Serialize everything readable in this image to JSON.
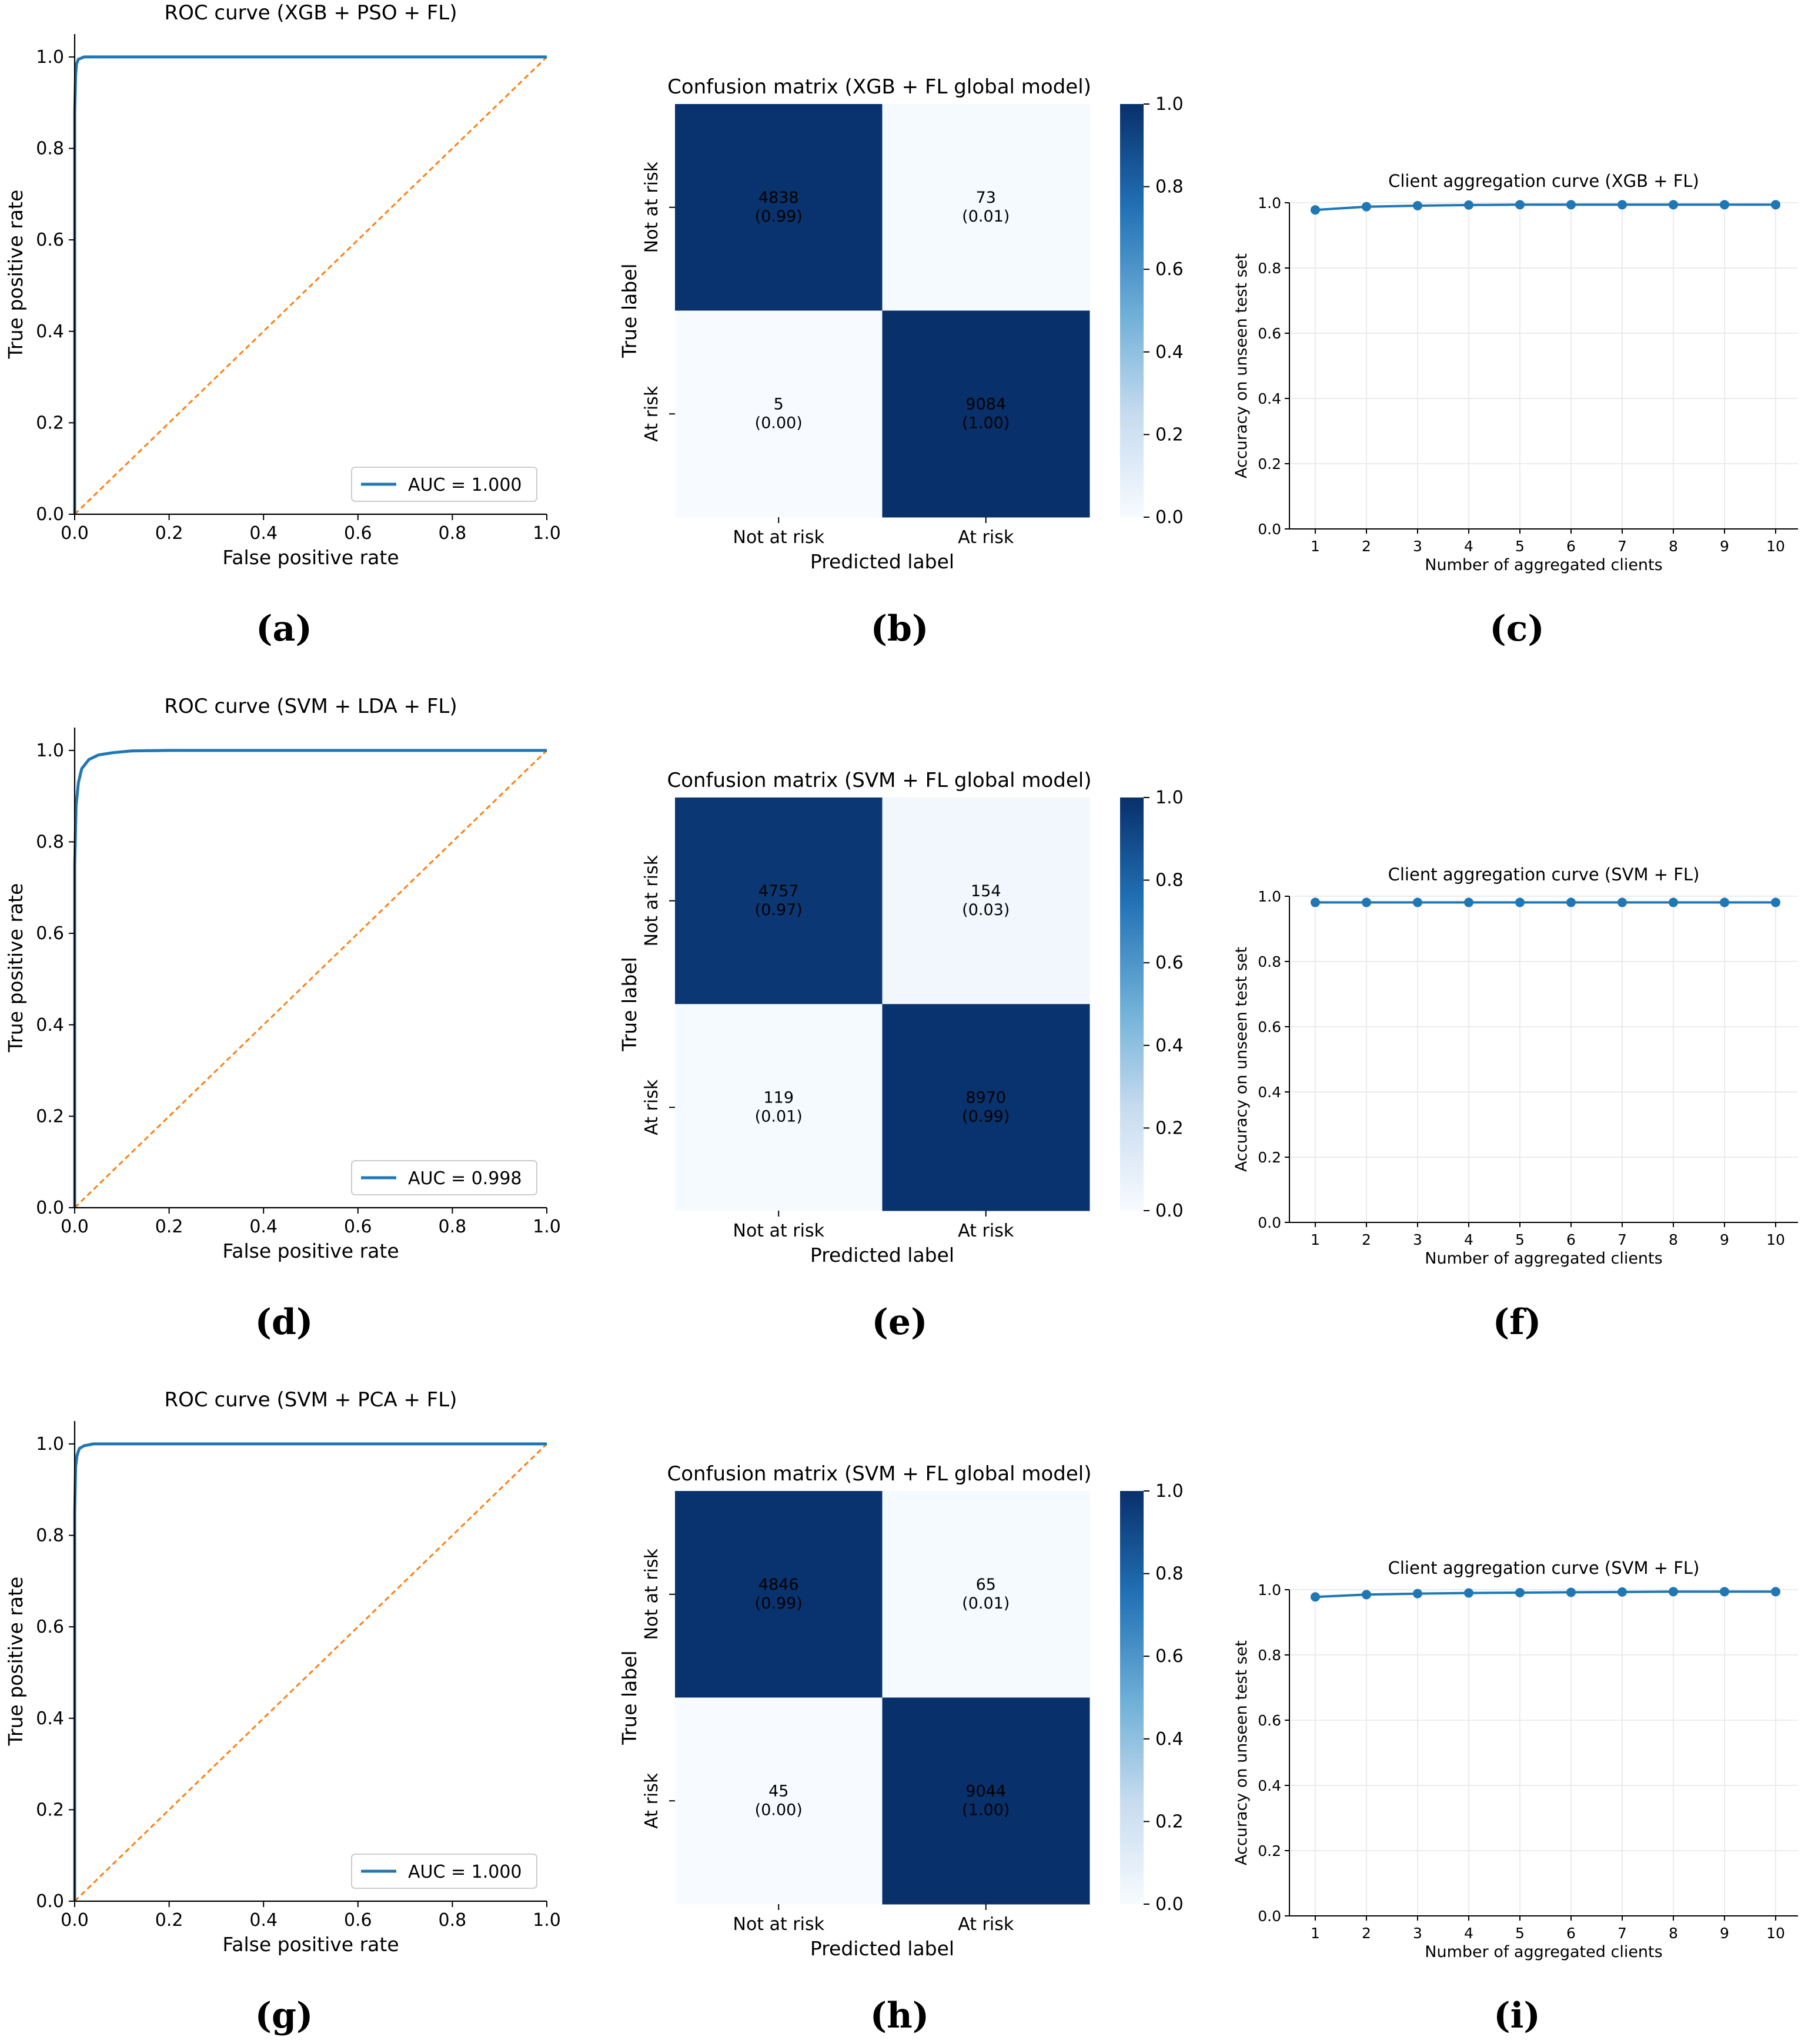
{
  "colors": {
    "roc_line": "#1f77b4",
    "diagonal": "#ff7f0e",
    "cm_high": "#08306b",
    "cm_low": "#f7fbff",
    "agg_line": "#1f77b4",
    "grid": "#e6e6e6"
  },
  "chart_data": [
    {
      "panel": "a",
      "type": "line",
      "subtype": "roc",
      "title": "ROC curve (XGB + PSO + FL)",
      "xlabel": "False positive rate",
      "ylabel": "True positive rate",
      "xlim": [
        0,
        1
      ],
      "ylim": [
        0,
        1.05
      ],
      "xticks": [
        "0.0",
        "0.2",
        "0.4",
        "0.6",
        "0.8",
        "1.0"
      ],
      "yticks": [
        "0.0",
        "0.2",
        "0.4",
        "0.6",
        "0.8",
        "1.0"
      ],
      "series": [
        {
          "name": "AUC = 1.000",
          "x": [
            0,
            0.0,
            0.002,
            0.004,
            0.008,
            0.02,
            0.05,
            0.2,
            1.0
          ],
          "y": [
            0,
            0.88,
            0.96,
            0.985,
            0.995,
            1.0,
            1.0,
            1.0,
            1.0
          ]
        },
        {
          "name": "chance",
          "x": [
            0,
            1
          ],
          "y": [
            0,
            1
          ],
          "style": "dashed"
        }
      ],
      "legend": "AUC = 1.000",
      "legend_position": "lower-right",
      "caption": "(a)"
    },
    {
      "panel": "b",
      "type": "heatmap",
      "subtype": "confusion-matrix",
      "title": "Confusion matrix (XGB + FL global model)",
      "xlabel": "Predicted label",
      "ylabel": "True label",
      "xticklabels": [
        "Not at risk",
        "At risk"
      ],
      "yticklabels": [
        "Not at risk",
        "At risk"
      ],
      "counts": [
        [
          4838,
          73
        ],
        [
          5,
          9084
        ]
      ],
      "normalized": [
        "(0.99)",
        "(0.01)",
        "(0.00)",
        "(1.00)"
      ],
      "values": [
        0.99,
        0.01,
        0.0,
        1.0
      ],
      "colorbar_ticks": [
        "0.0",
        "0.2",
        "0.4",
        "0.6",
        "0.8",
        "1.0"
      ],
      "caption": "(b)"
    },
    {
      "panel": "c",
      "type": "line",
      "subtype": "aggregation",
      "title": "Client aggregation curve (XGB + FL)",
      "xlabel": "Number of aggregated clients",
      "ylabel": "Accuracy on unseen test set",
      "x": [
        1,
        2,
        3,
        4,
        5,
        6,
        7,
        8,
        9,
        10
      ],
      "values": [
        0.978,
        0.988,
        0.991,
        0.993,
        0.994,
        0.994,
        0.994,
        0.994,
        0.994,
        0.994
      ],
      "ylim": [
        0,
        1.0
      ],
      "yticks": [
        "0.0",
        "0.2",
        "0.4",
        "0.6",
        "0.8",
        "1.0"
      ],
      "xticks": [
        "1",
        "2",
        "3",
        "4",
        "5",
        "6",
        "7",
        "8",
        "9",
        "10"
      ],
      "caption": "(c)"
    },
    {
      "panel": "d",
      "type": "line",
      "subtype": "roc",
      "title": "ROC curve (SVM + LDA + FL)",
      "xlabel": "False positive rate",
      "ylabel": "True positive rate",
      "xlim": [
        0,
        1
      ],
      "ylim": [
        0,
        1.05
      ],
      "xticks": [
        "0.0",
        "0.2",
        "0.4",
        "0.6",
        "0.8",
        "1.0"
      ],
      "yticks": [
        "0.0",
        "0.2",
        "0.4",
        "0.6",
        "0.8",
        "1.0"
      ],
      "series": [
        {
          "name": "AUC = 0.998",
          "x": [
            0,
            0.0,
            0.003,
            0.008,
            0.015,
            0.03,
            0.05,
            0.08,
            0.12,
            0.2,
            1.0
          ],
          "y": [
            0,
            0.75,
            0.88,
            0.93,
            0.96,
            0.98,
            0.99,
            0.995,
            0.999,
            1.0,
            1.0
          ]
        },
        {
          "name": "chance",
          "x": [
            0,
            1
          ],
          "y": [
            0,
            1
          ],
          "style": "dashed"
        }
      ],
      "legend": "AUC = 0.998",
      "legend_position": "lower-right",
      "caption": "(d)"
    },
    {
      "panel": "e",
      "type": "heatmap",
      "subtype": "confusion-matrix",
      "title": "Confusion matrix (SVM + FL global model)",
      "xlabel": "Predicted label",
      "ylabel": "True label",
      "xticklabels": [
        "Not at risk",
        "At risk"
      ],
      "yticklabels": [
        "Not at risk",
        "At risk"
      ],
      "counts": [
        [
          4757,
          154
        ],
        [
          119,
          8970
        ]
      ],
      "normalized": [
        "(0.97)",
        "(0.03)",
        "(0.01)",
        "(0.99)"
      ],
      "values": [
        0.97,
        0.03,
        0.01,
        0.99
      ],
      "colorbar_ticks": [
        "0.0",
        "0.2",
        "0.4",
        "0.6",
        "0.8",
        "1.0"
      ],
      "caption": "(e)"
    },
    {
      "panel": "f",
      "type": "line",
      "subtype": "aggregation",
      "title": "Client aggregation curve (SVM + FL)",
      "xlabel": "Number of aggregated clients",
      "ylabel": "Accuracy on unseen test set",
      "x": [
        1,
        2,
        3,
        4,
        5,
        6,
        7,
        8,
        9,
        10
      ],
      "values": [
        0.981,
        0.981,
        0.981,
        0.981,
        0.981,
        0.981,
        0.981,
        0.981,
        0.981,
        0.981
      ],
      "ylim": [
        0,
        1.0
      ],
      "yticks": [
        "0.0",
        "0.2",
        "0.4",
        "0.6",
        "0.8",
        "1.0"
      ],
      "xticks": [
        "1",
        "2",
        "3",
        "4",
        "5",
        "6",
        "7",
        "8",
        "9",
        "10"
      ],
      "caption": "(f)"
    },
    {
      "panel": "g",
      "type": "line",
      "subtype": "roc",
      "title": "ROC curve (SVM + PCA + FL)",
      "xlabel": "False positive rate",
      "ylabel": "True positive rate",
      "xlim": [
        0,
        1
      ],
      "ylim": [
        0,
        1.05
      ],
      "xticks": [
        "0.0",
        "0.2",
        "0.4",
        "0.6",
        "0.8",
        "1.0"
      ],
      "yticks": [
        "0.0",
        "0.2",
        "0.4",
        "0.6",
        "0.8",
        "1.0"
      ],
      "series": [
        {
          "name": "AUC = 1.000",
          "x": [
            0,
            0.0,
            0.002,
            0.005,
            0.01,
            0.02,
            0.04,
            0.08,
            1.0
          ],
          "y": [
            0,
            0.85,
            0.95,
            0.975,
            0.99,
            0.996,
            1.0,
            1.0,
            1.0
          ]
        },
        {
          "name": "chance",
          "x": [
            0,
            1
          ],
          "y": [
            0,
            1
          ],
          "style": "dashed"
        }
      ],
      "legend": "AUC = 1.000",
      "legend_position": "lower-right",
      "caption": "(g)"
    },
    {
      "panel": "h",
      "type": "heatmap",
      "subtype": "confusion-matrix",
      "title": "Confusion matrix (SVM + FL global model)",
      "xlabel": "Predicted label",
      "ylabel": "True label",
      "xticklabels": [
        "Not at risk",
        "At risk"
      ],
      "yticklabels": [
        "Not at risk",
        "At risk"
      ],
      "counts": [
        [
          4846,
          65
        ],
        [
          45,
          9044
        ]
      ],
      "normalized": [
        "(0.99)",
        "(0.01)",
        "(0.00)",
        "(1.00)"
      ],
      "values": [
        0.99,
        0.01,
        0.0,
        1.0
      ],
      "colorbar_ticks": [
        "0.0",
        "0.2",
        "0.4",
        "0.6",
        "0.8",
        "1.0"
      ],
      "caption": "(h)"
    },
    {
      "panel": "i",
      "type": "line",
      "subtype": "aggregation",
      "title": "Client aggregation curve (SVM + FL)",
      "xlabel": "Number of aggregated clients",
      "ylabel": "Accuracy on unseen test set",
      "x": [
        1,
        2,
        3,
        4,
        5,
        6,
        7,
        8,
        9,
        10
      ],
      "values": [
        0.978,
        0.985,
        0.988,
        0.99,
        0.991,
        0.992,
        0.993,
        0.994,
        0.994,
        0.994
      ],
      "ylim": [
        0,
        1.0
      ],
      "yticks": [
        "0.0",
        "0.2",
        "0.4",
        "0.6",
        "0.8",
        "1.0"
      ],
      "xticks": [
        "1",
        "2",
        "3",
        "4",
        "5",
        "6",
        "7",
        "8",
        "9",
        "10"
      ],
      "caption": "(i)"
    }
  ]
}
